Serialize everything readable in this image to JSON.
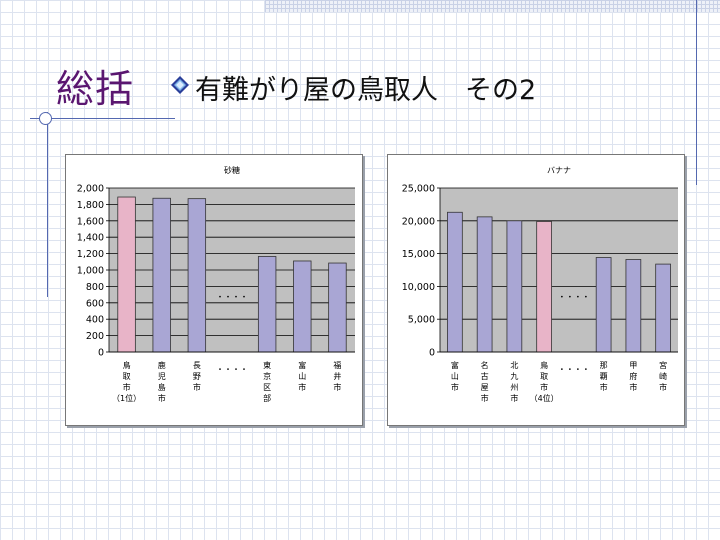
{
  "slide": {
    "title": "総括",
    "subtitle": "有難がり屋の鳥取人　その2"
  },
  "colors": {
    "title": "#5a1670",
    "bar_default": "#a9a6d4",
    "bar_highlight": "#e8b4c8",
    "plot_background": "#c0c0c0"
  },
  "chart_data": [
    {
      "type": "bar",
      "title": "砂糖",
      "ylim": [
        0,
        2000
      ],
      "yticks": [
        0,
        200,
        400,
        600,
        800,
        1000,
        1200,
        1400,
        1600,
        1800,
        2000
      ],
      "ytick_labels": [
        "0",
        "200",
        "400",
        "600",
        "800",
        "1,000",
        "1,200",
        "1,400",
        "1,600",
        "1,800",
        "2,000"
      ],
      "categories": [
        "鳥取市",
        "鹿児島市",
        "長野市",
        "・・・・",
        "東京区部",
        "富山市",
        "福井市"
      ],
      "category_notes": [
        "（1位）",
        "",
        "",
        "",
        "",
        "",
        ""
      ],
      "values": [
        1890,
        1875,
        1870,
        null,
        1165,
        1110,
        1085
      ],
      "highlight_index": 0,
      "gap_label": "・・・・",
      "grid": true
    },
    {
      "type": "bar",
      "title": "バナナ",
      "ylim": [
        0,
        25000
      ],
      "yticks": [
        0,
        5000,
        10000,
        15000,
        20000,
        25000
      ],
      "ytick_labels": [
        "0",
        "5,000",
        "10,000",
        "15,000",
        "20,000",
        "25,000"
      ],
      "categories": [
        "富山市",
        "名古屋市",
        "北九州市",
        "鳥取市",
        "・・・・",
        "那覇市",
        "甲府市",
        "宮崎市"
      ],
      "category_notes": [
        "",
        "",
        "",
        "（4位）",
        "",
        "",
        "",
        ""
      ],
      "values": [
        21300,
        20600,
        20000,
        19900,
        null,
        14400,
        14100,
        13400
      ],
      "highlight_index": 3,
      "gap_label": "・・・・",
      "grid": true
    }
  ]
}
